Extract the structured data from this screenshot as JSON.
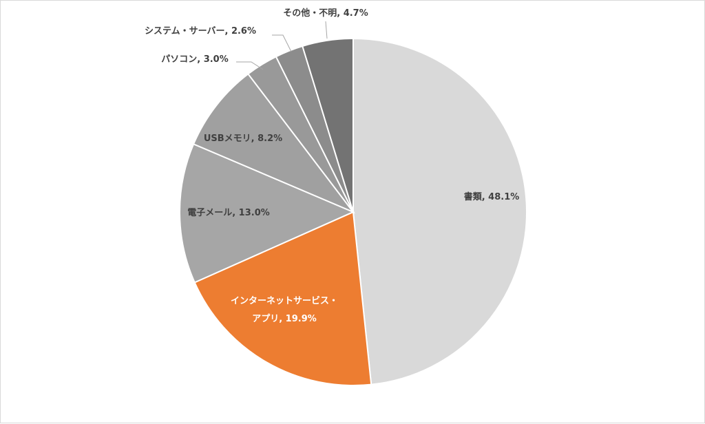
{
  "chart_data": {
    "type": "pie",
    "title": "",
    "slices": [
      {
        "label": "書類",
        "value": 48.1,
        "value_text": "48.1%",
        "color": "#d9d9d9"
      },
      {
        "label": "インターネットサービス・アプリ",
        "label_lines": [
          "インターネットサービス・",
          "アプリ"
        ],
        "value": 19.9,
        "value_text": "19.9%",
        "color": "#ed7d31"
      },
      {
        "label": "電子メール",
        "value": 13.0,
        "value_text": "13.0%",
        "color": "#a6a6a6"
      },
      {
        "label": "USBメモリ",
        "value": 8.2,
        "value_text": "8.2%",
        "color": "#a0a0a0"
      },
      {
        "label": "パソコン",
        "value": 3.0,
        "value_text": "3.0%",
        "color": "#999999"
      },
      {
        "label": "システム・サーバー",
        "value": 2.6,
        "value_text": "2.6%",
        "color": "#8c8c8c"
      },
      {
        "label": "その他・不明",
        "value": 4.7,
        "value_text": "4.7%",
        "color": "#737373"
      }
    ],
    "start_angle_deg": 0,
    "direction": "clockwise",
    "legend": "none"
  }
}
